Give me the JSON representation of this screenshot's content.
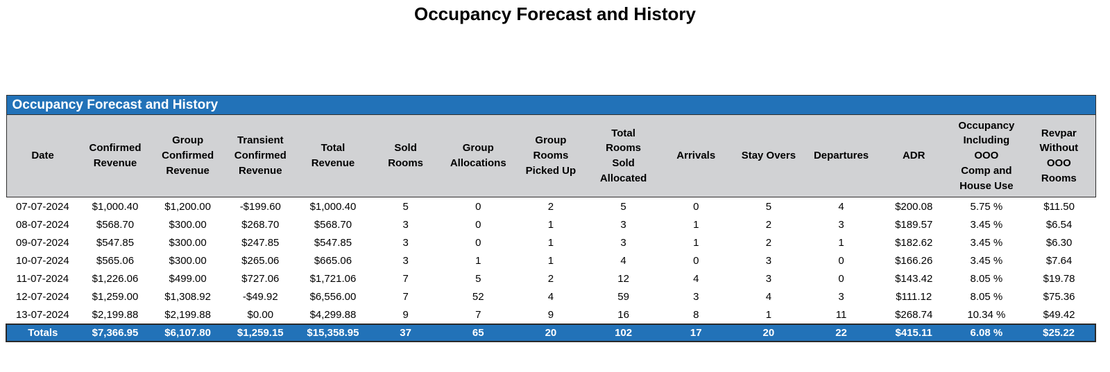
{
  "page": {
    "title": "Occupancy Forecast and History"
  },
  "colors": {
    "accent_blue": "#2272B8",
    "header_gray": "#D1D2D4"
  },
  "table": {
    "header_title": "Occupancy Forecast and History",
    "columns": [
      "Date",
      "Confirmed\nRevenue",
      "Group\nConfirmed\nRevenue",
      "Transient\nConfirmed\nRevenue",
      "Total\nRevenue",
      "Sold\nRooms",
      "Group\nAllocations",
      "Group\nRooms\nPicked Up",
      "Total\nRooms\nSold\nAllocated",
      "Arrivals",
      "Stay Overs",
      "Departures",
      "ADR",
      "Occupancy\nIncluding\nOOO\nComp and\nHouse Use",
      "Revpar\nWithout\nOOO\nRooms"
    ],
    "rows": [
      [
        "07-07-2024",
        "$1,000.40",
        "$1,200.00",
        "-$199.60",
        "$1,000.40",
        "5",
        "0",
        "2",
        "5",
        "0",
        "5",
        "4",
        "$200.08",
        "5.75 %",
        "$11.50"
      ],
      [
        "08-07-2024",
        "$568.70",
        "$300.00",
        "$268.70",
        "$568.70",
        "3",
        "0",
        "1",
        "3",
        "1",
        "2",
        "3",
        "$189.57",
        "3.45 %",
        "$6.54"
      ],
      [
        "09-07-2024",
        "$547.85",
        "$300.00",
        "$247.85",
        "$547.85",
        "3",
        "0",
        "1",
        "3",
        "1",
        "2",
        "1",
        "$182.62",
        "3.45 %",
        "$6.30"
      ],
      [
        "10-07-2024",
        "$565.06",
        "$300.00",
        "$265.06",
        "$665.06",
        "3",
        "1",
        "1",
        "4",
        "0",
        "3",
        "0",
        "$166.26",
        "3.45 %",
        "$7.64"
      ],
      [
        "11-07-2024",
        "$1,226.06",
        "$499.00",
        "$727.06",
        "$1,721.06",
        "7",
        "5",
        "2",
        "12",
        "4",
        "3",
        "0",
        "$143.42",
        "8.05 %",
        "$19.78"
      ],
      [
        "12-07-2024",
        "$1,259.00",
        "$1,308.92",
        "-$49.92",
        "$6,556.00",
        "7",
        "52",
        "4",
        "59",
        "3",
        "4",
        "3",
        "$111.12",
        "8.05 %",
        "$75.36"
      ],
      [
        "13-07-2024",
        "$2,199.88",
        "$2,199.88",
        "$0.00",
        "$4,299.88",
        "9",
        "7",
        "9",
        "16",
        "8",
        "1",
        "11",
        "$268.74",
        "10.34 %",
        "$49.42"
      ]
    ],
    "totals": [
      "Totals",
      "$7,366.95",
      "$6,107.80",
      "$1,259.15",
      "$15,358.95",
      "37",
      "65",
      "20",
      "102",
      "17",
      "20",
      "22",
      "$415.11",
      "6.08 %",
      "$25.22"
    ]
  }
}
